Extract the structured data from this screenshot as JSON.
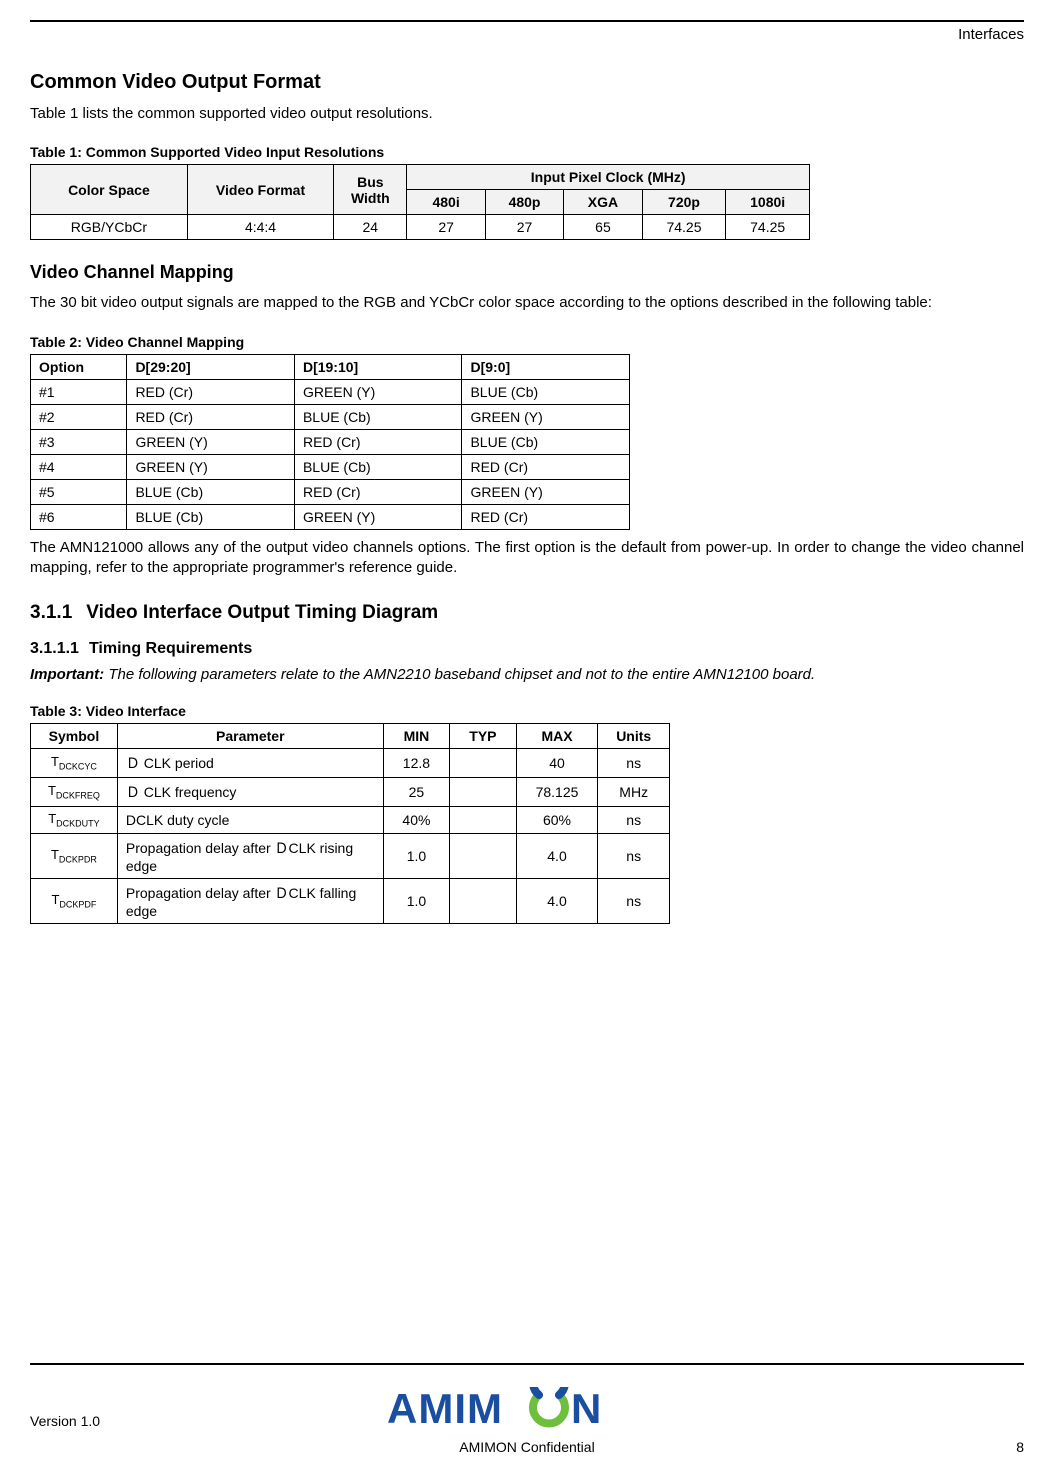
{
  "header": {
    "right_text": "Interfaces"
  },
  "s1": {
    "title": "Common Video Output Format",
    "intro": "Table 1 lists the common supported video output resolutions."
  },
  "t1": {
    "caption": "Table 1: Common Supported Video Input Resolutions",
    "h_cs": "Color Space",
    "h_vf": "Video Format",
    "h_bw": "Bus Width",
    "h_pc": "Input Pixel Clock (MHz)",
    "c480i": "480i",
    "c480p": "480p",
    "cXGA": "XGA",
    "c720p": "720p",
    "c1080i": "1080i",
    "row": {
      "cs": "RGB/YCbCr",
      "vf": "4:4:4",
      "bw": "24",
      "v480i": "27",
      "v480p": "27",
      "vXGA": "65",
      "v720p": "74.25",
      "v1080i": "74.25"
    }
  },
  "s2": {
    "title": "Video Channel Mapping",
    "para": "The 30 bit video output signals are mapped to the RGB and YCbCr color space according to the options described in the following table:"
  },
  "t2": {
    "caption": "Table 2: Video Channel Mapping",
    "h_opt": "Option",
    "h_d29": "D[29:20]",
    "h_d19": "D[19:10]",
    "h_d9": "D[9:0]",
    "rows": [
      {
        "o": "#1",
        "a": "RED (Cr)",
        "b": "GREEN (Y)",
        "c": "BLUE (Cb)"
      },
      {
        "o": "#2",
        "a": "RED (Cr)",
        "b": "BLUE (Cb)",
        "c": "GREEN (Y)"
      },
      {
        "o": "#3",
        "a": "GREEN (Y)",
        "b": "RED (Cr)",
        "c": "BLUE (Cb)"
      },
      {
        "o": "#4",
        "a": "GREEN (Y)",
        "b": "BLUE (Cb)",
        "c": "RED (Cr)"
      },
      {
        "o": "#5",
        "a": "BLUE (Cb)",
        "b": "RED (Cr)",
        "c": "GREEN (Y)"
      },
      {
        "o": "#6",
        "a": "BLUE (Cb)",
        "b": "GREEN (Y)",
        "c": "RED (Cr)"
      }
    ]
  },
  "s2b": {
    "para": "The AMN121000 allows any of the output video channels options. The first option is the default from power-up. In order to change the video channel mapping, refer to the appropriate programmer's reference guide."
  },
  "s3": {
    "num": "3.1.1",
    "title": "Video Interface Output Timing Diagram",
    "sub_num": "3.1.1.1",
    "sub_title": "Timing Requirements",
    "imp_label": "Important:",
    "imp_text": " The following parameters relate to the AMN2210 baseband chipset and not to the entire AMN12100 board."
  },
  "t3": {
    "caption": "Table 3: Video Interface",
    "h_sym": "Symbol",
    "h_par": "Parameter",
    "h_min": "MIN",
    "h_typ": "TYP",
    "h_max": "MAX",
    "h_un": "Units",
    "rows": [
      {
        "symP": "T",
        "symS": "DCKCYC",
        "par": "Ｄ CLK period",
        "min": "12.8",
        "typ": "",
        "max": "40",
        "un": "ns"
      },
      {
        "symP": "T",
        "symS": "DCKFREQ",
        "par": "Ｄ CLK frequency",
        "min": "25",
        "typ": "",
        "max": "78.125",
        "un": "MHz"
      },
      {
        "symP": "T",
        "symS": "DCKDUTY",
        "par": "DCLK duty cycle",
        "min": "40%",
        "typ": "",
        "max": "60%",
        "un": "ns"
      },
      {
        "symP": "T",
        "symS": "DCKPDR",
        "par": "Propagation delay after ＤCLK rising edge",
        "min": "1.0",
        "typ": "",
        "max": "4.0",
        "un": "ns"
      },
      {
        "symP": "T",
        "symS": "DCKPDF",
        "par": "Propagation delay after ＤCLK falling edge",
        "min": "1.0",
        "typ": "",
        "max": "4.0",
        "un": "ns"
      }
    ]
  },
  "footer": {
    "version": "Version 1.0",
    "confidential": "AMIMON Confidential",
    "page": "8",
    "logo_colors": {
      "text": "#1a4ea0",
      "accent": "#6fbf3f"
    }
  }
}
